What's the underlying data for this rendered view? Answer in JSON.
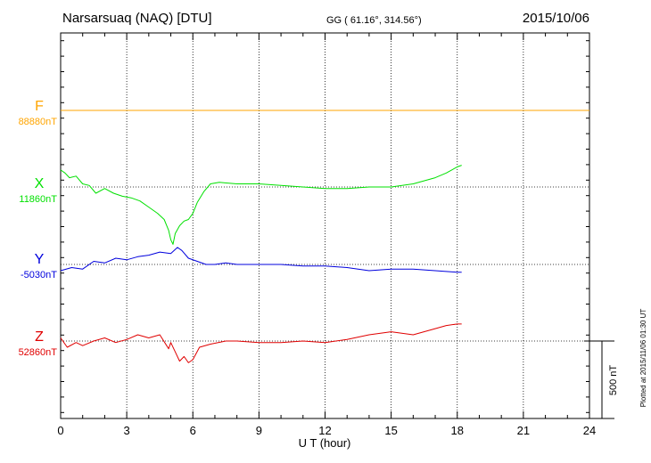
{
  "header": {
    "station": "Narsarsuaq (NAQ)  [DTU]",
    "coords": "GG ( 61.16°, 314.56°)",
    "date": "2015/10/06"
  },
  "footer": {
    "plotted_at": "Plotted at 2015/11/06 01:30 UT"
  },
  "colors": {
    "F": "#ffa500",
    "X": "#00e000",
    "Y": "#0000dd",
    "Z": "#e00000"
  },
  "chart_data": {
    "type": "line",
    "xlabel": "U T (hour)",
    "xlim": [
      0,
      24
    ],
    "xticks": [
      "0",
      "3",
      "6",
      "9",
      "12",
      "15",
      "18",
      "21",
      "24"
    ],
    "scale_bar_label": "500 nT",
    "scale_bar_nT": 500,
    "grid": true,
    "series": [
      {
        "name": "F",
        "baseline_label": "88880nT",
        "x": [
          0,
          24
        ],
        "values": [
          88880,
          88880
        ]
      },
      {
        "name": "X",
        "baseline_label": "11860nT",
        "x": [
          0,
          0.2,
          0.4,
          0.7,
          1.0,
          1.3,
          1.6,
          2.0,
          2.4,
          2.8,
          3.2,
          3.6,
          4.0,
          4.4,
          4.7,
          4.9,
          5.0,
          5.1,
          5.2,
          5.4,
          5.6,
          5.8,
          6.0,
          6.2,
          6.5,
          6.8,
          7.2,
          8,
          9,
          10,
          11,
          12,
          13,
          14,
          15,
          16,
          17,
          17.5,
          18,
          18.2
        ],
        "values": [
          11970,
          11950,
          11920,
          11930,
          11880,
          11870,
          11820,
          11850,
          11820,
          11800,
          11790,
          11770,
          11730,
          11690,
          11650,
          11580,
          11520,
          11490,
          11560,
          11610,
          11640,
          11650,
          11690,
          11760,
          11830,
          11880,
          11890,
          11880,
          11880,
          11870,
          11860,
          11850,
          11850,
          11860,
          11860,
          11880,
          11920,
          11950,
          11990,
          12000
        ]
      },
      {
        "name": "Y",
        "baseline_label": "-5030nT",
        "x": [
          0,
          0.5,
          1.0,
          1.5,
          2.0,
          2.5,
          3.0,
          3.5,
          4.0,
          4.5,
          5.0,
          5.3,
          5.5,
          5.8,
          6.2,
          6.6,
          7.0,
          7.5,
          8,
          9,
          10,
          11,
          12,
          13,
          14,
          15,
          16,
          17,
          18,
          18.2
        ],
        "values": [
          -5070,
          -5050,
          -5060,
          -5010,
          -5020,
          -4990,
          -5000,
          -4980,
          -4970,
          -4950,
          -4960,
          -4920,
          -4940,
          -4990,
          -5010,
          -5030,
          -5030,
          -5020,
          -5030,
          -5030,
          -5030,
          -5040,
          -5040,
          -5050,
          -5070,
          -5060,
          -5060,
          -5070,
          -5080,
          -5080
        ]
      },
      {
        "name": "Z",
        "baseline_label": "52860nT",
        "x": [
          0,
          0.3,
          0.7,
          1.0,
          1.5,
          2.0,
          2.5,
          3.0,
          3.5,
          4.0,
          4.5,
          4.9,
          5.0,
          5.2,
          5.4,
          5.6,
          5.8,
          6.0,
          6.3,
          6.8,
          7.5,
          8,
          9,
          10,
          11,
          12,
          13,
          14,
          15,
          16,
          17,
          17.5,
          18,
          18.2
        ],
        "values": [
          52880,
          52820,
          52850,
          52830,
          52860,
          52880,
          52850,
          52870,
          52900,
          52880,
          52900,
          52810,
          52850,
          52790,
          52730,
          52760,
          52720,
          52740,
          52820,
          52840,
          52860,
          52860,
          52850,
          52850,
          52860,
          52850,
          52870,
          52900,
          52920,
          52900,
          52940,
          52960,
          52970,
          52970
        ]
      }
    ]
  }
}
